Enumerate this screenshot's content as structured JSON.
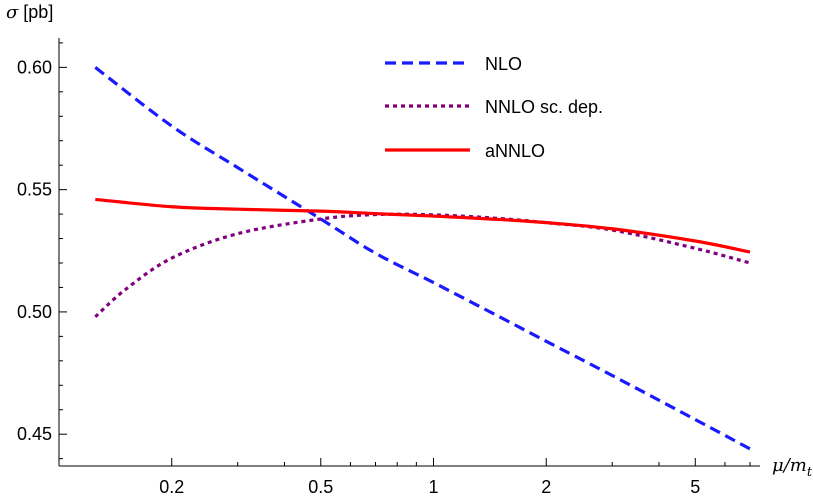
{
  "chart_data": {
    "type": "line",
    "title": "",
    "ylabel": "σ [pb]",
    "xlabel": "μ/m_t",
    "xscale": "log",
    "xlim": [
      0.1,
      7
    ],
    "ylim": [
      0.437,
      0.612
    ],
    "xticks": [
      {
        "value": 0.2,
        "label": "0.2"
      },
      {
        "value": 0.5,
        "label": "0.5"
      },
      {
        "value": 1,
        "label": "1"
      },
      {
        "value": 2,
        "label": "2"
      },
      {
        "value": 5,
        "label": "5"
      }
    ],
    "yticks": [
      {
        "value": 0.6,
        "label": "0.60"
      },
      {
        "value": 0.55,
        "label": "0.55"
      },
      {
        "value": 0.5,
        "label": "0.50"
      },
      {
        "value": 0.45,
        "label": "0.45"
      }
    ],
    "legend_position": "top-center",
    "series": [
      {
        "name": "NLO",
        "color": "#1a1aff",
        "dash": "dashed",
        "x": [
          0.125,
          0.2,
          0.3,
          0.5,
          0.7,
          1,
          1.5,
          2,
          3,
          5,
          7
        ],
        "y": [
          0.6,
          0.576,
          0.559,
          0.538,
          0.524,
          0.512,
          0.498,
          0.488,
          0.474,
          0.456,
          0.444
        ]
      },
      {
        "name": "NNLO sc. dep.",
        "color": "#800080",
        "dash": "dotted",
        "x": [
          0.125,
          0.15,
          0.2,
          0.3,
          0.5,
          0.7,
          1,
          1.5,
          2,
          3,
          5,
          7
        ],
        "y": [
          0.498,
          0.509,
          0.522,
          0.532,
          0.538,
          0.5398,
          0.5397,
          0.5382,
          0.5365,
          0.5335,
          0.526,
          0.52
        ]
      },
      {
        "name": "aNNLO",
        "color": "#ff0000",
        "dash": "solid",
        "x": [
          0.125,
          0.2,
          0.3,
          0.5,
          0.7,
          1,
          1.5,
          2,
          3,
          5,
          7
        ],
        "y": [
          0.546,
          0.543,
          0.542,
          0.5412,
          0.5402,
          0.5392,
          0.5378,
          0.5365,
          0.534,
          0.529,
          0.5245
        ]
      }
    ]
  }
}
